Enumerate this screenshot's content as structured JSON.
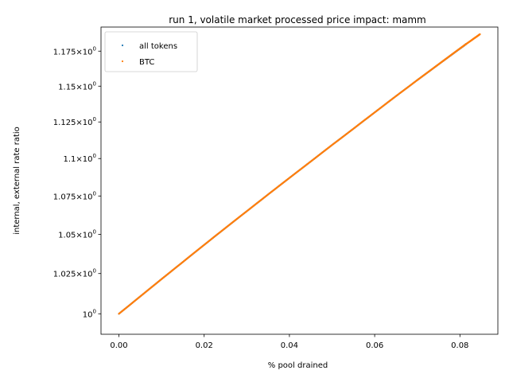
{
  "chart_data": {
    "type": "scatter",
    "title": "run 1, volatile market processed price impact: mamm",
    "xlabel": "% pool drained",
    "ylabel": "internal, external rate ratio",
    "xlim": [
      -0.0042,
      0.0889
    ],
    "ylim": [
      0.9875,
      1.1925
    ],
    "y_scale": "log",
    "x_ticks": [
      0.0,
      0.02,
      0.04,
      0.06,
      0.08
    ],
    "x_tick_labels": [
      "0.00",
      "0.02",
      "0.04",
      "0.06",
      "0.08"
    ],
    "y_ticks": [
      1.0,
      1.025,
      1.05,
      1.075,
      1.1,
      1.125,
      1.15,
      1.175
    ],
    "y_tick_labels": [
      {
        "mantissa": "",
        "exp": "0"
      },
      {
        "mantissa": "1.025",
        "exp": "0"
      },
      {
        "mantissa": "1.05",
        "exp": "0"
      },
      {
        "mantissa": "1.075",
        "exp": "0"
      },
      {
        "mantissa": "1.1",
        "exp": "0"
      },
      {
        "mantissa": "1.125",
        "exp": "0"
      },
      {
        "mantissa": "1.15",
        "exp": "0"
      },
      {
        "mantissa": "1.175",
        "exp": "0"
      }
    ],
    "legend_position": "upper-left",
    "grid": false,
    "series": [
      {
        "name": "all tokens",
        "color": "#1f77b4",
        "x": [
          0.0,
          0.005,
          0.01,
          0.015,
          0.02,
          0.025,
          0.03,
          0.035,
          0.04,
          0.045,
          0.05,
          0.055,
          0.06,
          0.065,
          0.07,
          0.073,
          0.076,
          0.078,
          0.0795,
          0.0808,
          0.0815
        ],
        "y": [
          1.0,
          1.0107,
          1.0215,
          1.0323,
          1.0432,
          1.0541,
          1.065,
          1.076,
          1.087,
          1.098,
          1.1092,
          1.1203,
          1.1316,
          1.143,
          1.1543,
          1.161,
          1.1678,
          1.1723,
          1.1757,
          1.1786,
          1.1803
        ]
      },
      {
        "name": "BTC",
        "color": "#ff7f0e",
        "x": [
          0.0,
          0.0025,
          0.005,
          0.0075,
          0.01,
          0.0125,
          0.015,
          0.0175,
          0.02,
          0.0225,
          0.025,
          0.0275,
          0.03,
          0.0325,
          0.035,
          0.0375,
          0.04,
          0.0425,
          0.045,
          0.0475,
          0.05,
          0.0525,
          0.055,
          0.0575,
          0.06,
          0.0625,
          0.065,
          0.0675,
          0.07,
          0.072,
          0.074,
          0.0755,
          0.077,
          0.0785,
          0.08,
          0.0812,
          0.0825,
          0.0833,
          0.084,
          0.0847
        ],
        "y": [
          1.0,
          1.0053,
          1.0107,
          1.0161,
          1.0215,
          1.0269,
          1.0323,
          1.0378,
          1.0432,
          1.0487,
          1.0541,
          1.0596,
          1.065,
          1.0705,
          1.076,
          1.0815,
          1.087,
          1.0925,
          1.098,
          1.1036,
          1.1092,
          1.1147,
          1.1203,
          1.126,
          1.1316,
          1.1373,
          1.143,
          1.1486,
          1.1543,
          1.1588,
          1.1633,
          1.1667,
          1.1701,
          1.1735,
          1.1769,
          1.1796,
          1.1824,
          1.1842,
          1.1857,
          1.1873
        ]
      }
    ]
  }
}
